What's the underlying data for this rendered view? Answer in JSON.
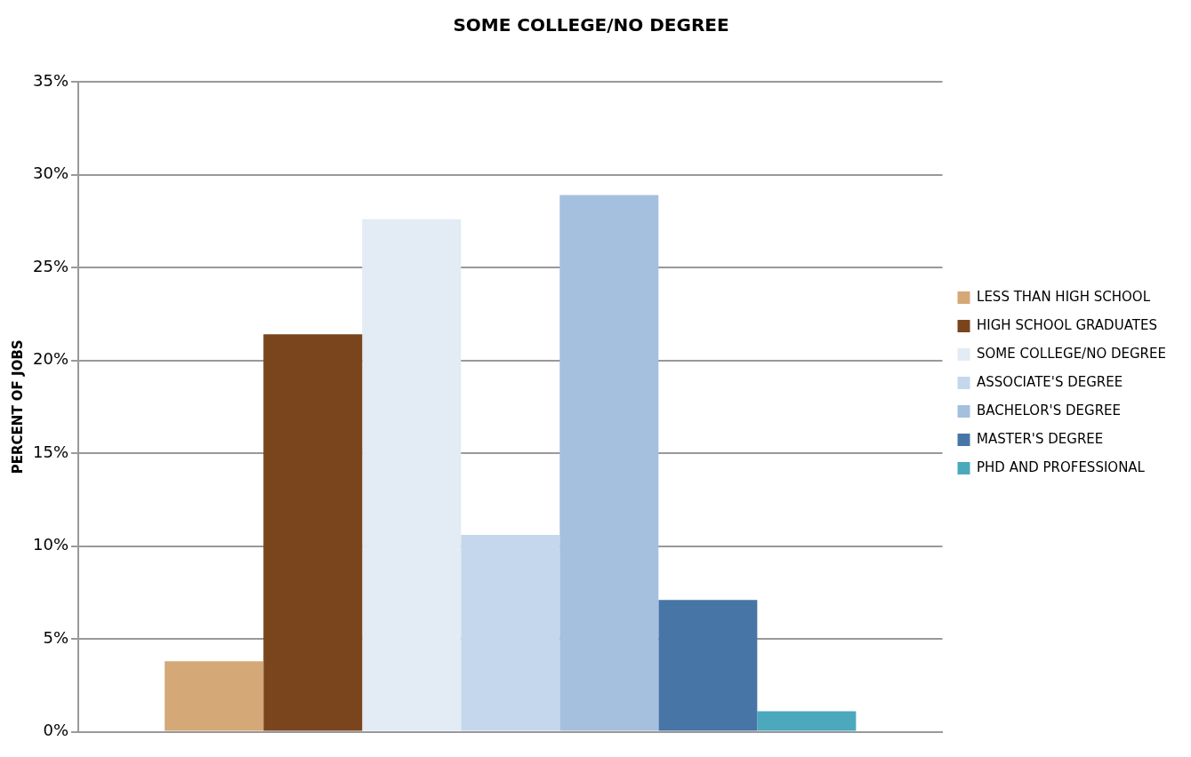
{
  "chart_data": {
    "type": "bar",
    "title": "SOME COLLEGE/NO DEGREE",
    "ylabel": "PERCENT OF JOBS",
    "categories": [
      null
    ],
    "series": [
      {
        "name": "LESS THAN HIGH SCHOOL",
        "color": "#d4a877",
        "values": [
          3.8
        ]
      },
      {
        "name": "HIGH SCHOOL GRADUATES",
        "color": "#7a451d",
        "values": [
          21.4
        ]
      },
      {
        "name": "SOME COLLEGE/NO DEGREE",
        "color": "#e3ebf4",
        "values": [
          27.6
        ]
      },
      {
        "name": "ASSOCIATE'S DEGREE",
        "color": "#c5d7ec",
        "values": [
          10.6
        ]
      },
      {
        "name": "BACHELOR'S DEGREE",
        "color": "#a5bfdf",
        "values": [
          28.9
        ]
      },
      {
        "name": "MASTER'S DEGREE",
        "color": "#4775a6",
        "values": [
          7.1
        ]
      },
      {
        "name": "PHD AND PROFESSIONAL",
        "color": "#4ca8bd",
        "values": [
          1.1
        ]
      }
    ],
    "ylim": [
      0,
      35
    ],
    "yticks": [
      {
        "value": 0,
        "label": "0%"
      },
      {
        "value": 5,
        "label": "5%"
      },
      {
        "value": 10,
        "label": "10%"
      },
      {
        "value": 15,
        "label": "15%"
      },
      {
        "value": 20,
        "label": "20%"
      },
      {
        "value": 25,
        "label": "25%"
      },
      {
        "value": 30,
        "label": "30%"
      },
      {
        "value": 35,
        "label": "35%"
      }
    ],
    "grid": "y",
    "legend": "right"
  }
}
